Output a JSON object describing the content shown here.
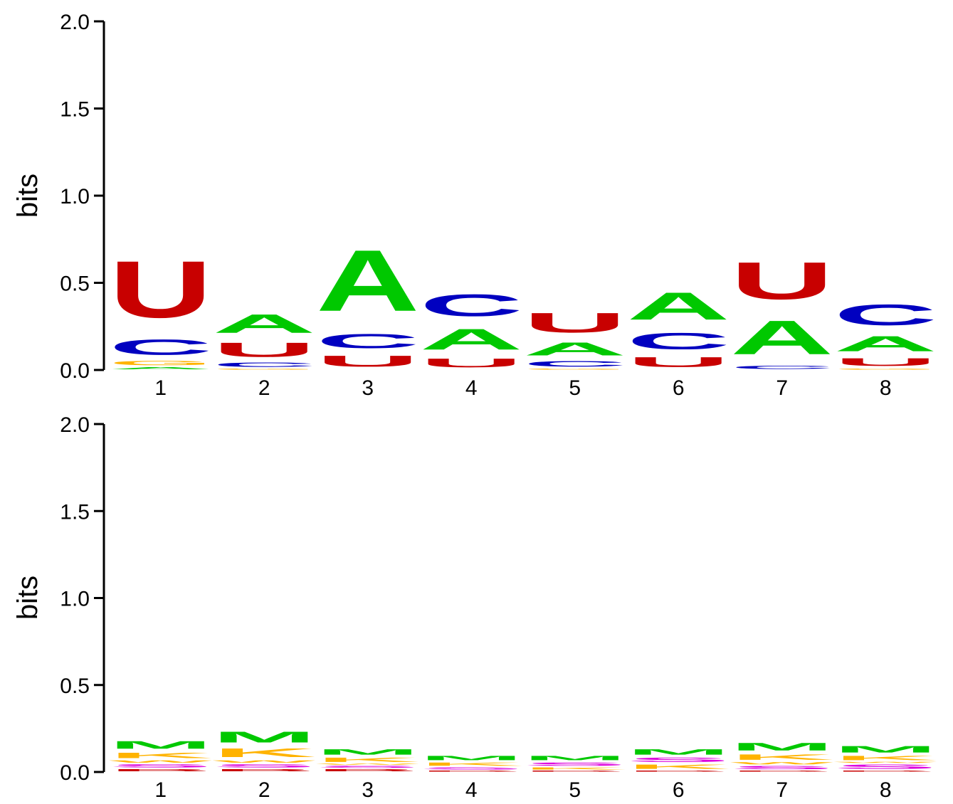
{
  "chart_data": [
    {
      "type": "sequence-logo",
      "ylabel": "bits",
      "ylim": [
        0,
        2.0
      ],
      "yticks": [
        "0.0",
        "0.5",
        "1.0",
        "1.5",
        "2.0"
      ],
      "positions": [
        "1",
        "2",
        "3",
        "4",
        "5",
        "6",
        "7",
        "8"
      ],
      "columns": [
        [
          {
            "letter": "A",
            "bits": 0.02
          },
          {
            "letter": "G",
            "bits": 0.04
          },
          {
            "letter": "C",
            "bits": 0.14
          },
          {
            "letter": "U",
            "bits": 0.52
          }
        ],
        [
          {
            "letter": "G",
            "bits": 0.01
          },
          {
            "letter": "C",
            "bits": 0.04
          },
          {
            "letter": "U",
            "bits": 0.13
          },
          {
            "letter": "A",
            "bits": 0.17
          }
        ],
        [
          {
            "letter": "U",
            "bits": 0.1
          },
          {
            "letter": "C",
            "bits": 0.13
          },
          {
            "letter": "A",
            "bits": 0.56
          }
        ],
        [
          {
            "letter": "U",
            "bits": 0.08
          },
          {
            "letter": "A",
            "bits": 0.19
          },
          {
            "letter": "C",
            "bits": 0.2
          }
        ],
        [
          {
            "letter": "G",
            "bits": 0.01
          },
          {
            "letter": "C",
            "bits": 0.05
          },
          {
            "letter": "A",
            "bits": 0.12
          },
          {
            "letter": "U",
            "bits": 0.18
          }
        ],
        [
          {
            "letter": "U",
            "bits": 0.09
          },
          {
            "letter": "C",
            "bits": 0.15
          },
          {
            "letter": "A",
            "bits": 0.25
          }
        ],
        [
          {
            "letter": "C",
            "bits": 0.03
          },
          {
            "letter": "A",
            "bits": 0.31
          },
          {
            "letter": "U",
            "bits": 0.34
          }
        ],
        [
          {
            "letter": "G",
            "bits": 0.01
          },
          {
            "letter": "U",
            "bits": 0.07
          },
          {
            "letter": "A",
            "bits": 0.14
          },
          {
            "letter": "C",
            "bits": 0.19
          }
        ]
      ]
    },
    {
      "type": "sequence-logo",
      "ylabel": "bits",
      "ylim": [
        0,
        2.0
      ],
      "yticks": [
        "0.0",
        "0.5",
        "1.0",
        "1.5",
        "2.0"
      ],
      "positions": [
        "1",
        "2",
        "3",
        "4",
        "5",
        "6",
        "7",
        "8"
      ],
      "columns": [
        [
          {
            "letter": "B",
            "bits": 0.02
          },
          {
            "letter": "S",
            "bits": 0.03
          },
          {
            "letter": "W",
            "bits": 0.02
          },
          {
            "letter": "K",
            "bits": 0.05
          },
          {
            "letter": "M",
            "bits": 0.07
          }
        ],
        [
          {
            "letter": "B",
            "bits": 0.02
          },
          {
            "letter": "S",
            "bits": 0.03
          },
          {
            "letter": "W",
            "bits": 0.02
          },
          {
            "letter": "K",
            "bits": 0.08
          },
          {
            "letter": "M",
            "bits": 0.1
          }
        ],
        [
          {
            "letter": "B",
            "bits": 0.02
          },
          {
            "letter": "S",
            "bits": 0.02
          },
          {
            "letter": "W",
            "bits": 0.01
          },
          {
            "letter": "K",
            "bits": 0.04
          },
          {
            "letter": "M",
            "bits": 0.05
          }
        ],
        [
          {
            "letter": "B",
            "bits": 0.01
          },
          {
            "letter": "S",
            "bits": 0.02
          },
          {
            "letter": "K",
            "bits": 0.03
          },
          {
            "letter": "M",
            "bits": 0.04
          }
        ],
        [
          {
            "letter": "B",
            "bits": 0.01
          },
          {
            "letter": "K",
            "bits": 0.02
          },
          {
            "letter": "S",
            "bits": 0.03
          },
          {
            "letter": "M",
            "bits": 0.04
          }
        ],
        [
          {
            "letter": "B",
            "bits": 0.01
          },
          {
            "letter": "K",
            "bits": 0.04
          },
          {
            "letter": "S",
            "bits": 0.04
          },
          {
            "letter": "M",
            "bits": 0.05
          }
        ],
        [
          {
            "letter": "B",
            "bits": 0.01
          },
          {
            "letter": "S",
            "bits": 0.03
          },
          {
            "letter": "W",
            "bits": 0.02
          },
          {
            "letter": "K",
            "bits": 0.05
          },
          {
            "letter": "M",
            "bits": 0.07
          }
        ],
        [
          {
            "letter": "B",
            "bits": 0.01
          },
          {
            "letter": "S",
            "bits": 0.04
          },
          {
            "letter": "W",
            "bits": 0.01
          },
          {
            "letter": "K",
            "bits": 0.04
          },
          {
            "letter": "M",
            "bits": 0.06
          }
        ]
      ]
    }
  ],
  "letter_colors": {
    "A": "#00c800",
    "C": "#0000c0",
    "G": "#ffb300",
    "U": "#c80000",
    "M": "#00c800",
    "K": "#ffb300",
    "S": "#dd00dd",
    "W": "#ffb300",
    "B": "#c80000"
  }
}
